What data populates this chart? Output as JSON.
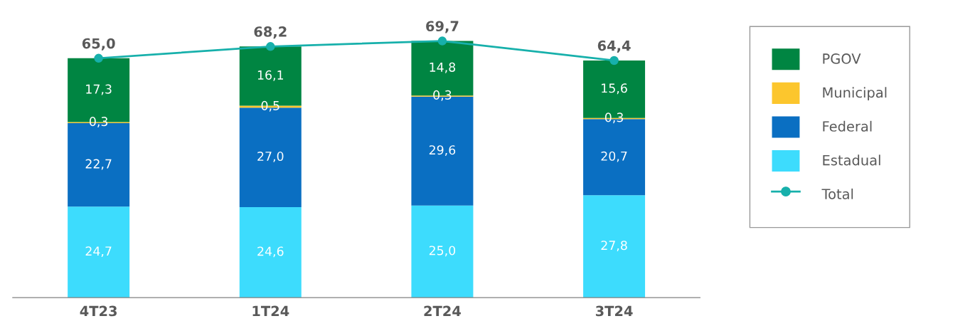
{
  "chart_data": {
    "type": "bar",
    "stacked": true,
    "categories": [
      "4T23",
      "1T24",
      "2T24",
      "3T24"
    ],
    "series": [
      {
        "name": "Estadual",
        "color": "#3ddcfd",
        "values": [
          24.7,
          24.6,
          25.0,
          27.8
        ],
        "value_labels": [
          "24,7",
          "24,6",
          "25,0",
          "27,8"
        ]
      },
      {
        "name": "Federal",
        "color": "#0a6fc2",
        "values": [
          22.7,
          27.0,
          29.6,
          20.7
        ],
        "value_labels": [
          "22,7",
          "27,0",
          "29,6",
          "20,7"
        ]
      },
      {
        "name": "Municipal",
        "color": "#fcc62d",
        "values": [
          0.3,
          0.5,
          0.3,
          0.3
        ],
        "value_labels": [
          "0,3",
          "0,5",
          "0,3",
          "0,3"
        ]
      },
      {
        "name": "PGOV",
        "color": "#008542",
        "values": [
          17.3,
          16.1,
          14.8,
          15.6
        ],
        "value_labels": [
          "17,3",
          "16,1",
          "14,8",
          "15,6"
        ]
      },
      {
        "name": "Total",
        "type": "line",
        "color": "#17b0ab",
        "marker": "circle",
        "values": [
          65.0,
          68.2,
          69.7,
          64.4
        ],
        "value_labels": [
          "65,0",
          "68,2",
          "69,7",
          "64,4"
        ]
      }
    ],
    "legend": "right",
    "grid": false
  }
}
